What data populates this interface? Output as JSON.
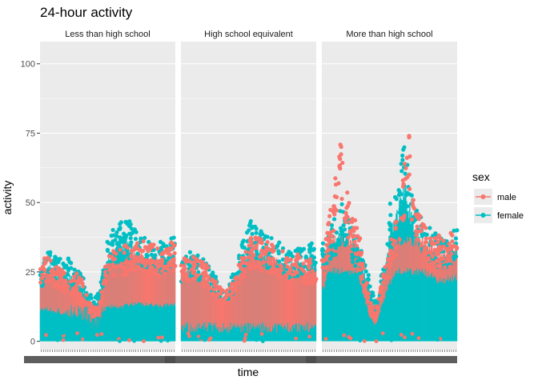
{
  "chart_data": {
    "type": "scatter",
    "title": "24-hour activity",
    "xlabel": "time",
    "ylabel": "activity",
    "ylim": [
      -3,
      108
    ],
    "yticks": [
      0,
      25,
      50,
      75,
      100
    ],
    "grid": true,
    "facets": [
      "Less than high school",
      "High school equivalent",
      "More than high school"
    ],
    "x_range_minutes": [
      1,
      1440
    ],
    "legend": {
      "title": "sex",
      "position": "right",
      "entries": [
        {
          "name": "male",
          "color": "#F8766D"
        },
        {
          "name": "female",
          "color": "#00BFC4"
        }
      ]
    },
    "series": [
      {
        "name": "male",
        "color": "#F8766D",
        "profiles_hourly_upper": [
          [
            30,
            30,
            28,
            27,
            25,
            22,
            24,
            22,
            15,
            12,
            13,
            30,
            34,
            32,
            33,
            35,
            36,
            37,
            36,
            35,
            34,
            33,
            34,
            36
          ],
          [
            30,
            31,
            30,
            29,
            27,
            24,
            20,
            18,
            20,
            22,
            29,
            33,
            38,
            37,
            36,
            35,
            34,
            33,
            32,
            30,
            31,
            30,
            29,
            30
          ],
          [
            34,
            48,
            60,
            72,
            55,
            45,
            40,
            28,
            15,
            10,
            20,
            30,
            38,
            45,
            62,
            74,
            50,
            46,
            42,
            40,
            38,
            36,
            38,
            39
          ]
        ]
      },
      {
        "name": "female",
        "color": "#00BFC4",
        "profiles_hourly_upper": [
          [
            28,
            33,
            32,
            31,
            30,
            29,
            26,
            24,
            20,
            15,
            18,
            33,
            38,
            42,
            43,
            45,
            41,
            38,
            37,
            37,
            36,
            35,
            36,
            37
          ],
          [
            30,
            32,
            31,
            30,
            28,
            25,
            22,
            19,
            21,
            25,
            33,
            38,
            43,
            41,
            40,
            37,
            36,
            35,
            33,
            32,
            33,
            33,
            34,
            35
          ],
          [
            36,
            40,
            45,
            50,
            45,
            40,
            36,
            30,
            22,
            15,
            25,
            40,
            54,
            58,
            70,
            60,
            50,
            44,
            42,
            40,
            38,
            37,
            38,
            40
          ]
        ]
      }
    ]
  }
}
